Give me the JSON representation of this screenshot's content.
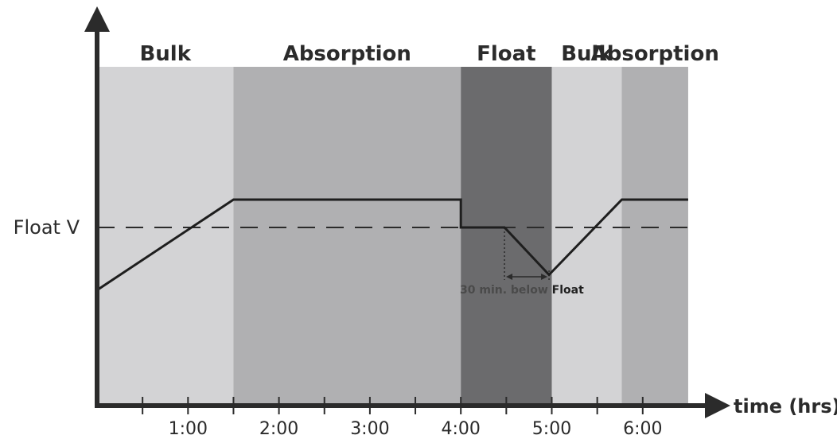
{
  "chart_data": {
    "type": "line",
    "x_unit_label": "time (hrs)",
    "y_reference_label": "Float V",
    "x_ticks": [
      "1:00",
      "2:00",
      "3:00",
      "4:00",
      "5:00",
      "6:00"
    ],
    "x_range_hours": [
      0,
      6.5
    ],
    "stages": [
      {
        "label": "Bulk",
        "start": 0,
        "end": 1.5,
        "color": "#d3d3d5"
      },
      {
        "label": "Absorption",
        "start": 1.5,
        "end": 4.0,
        "color": "#b0b0b2"
      },
      {
        "label": "Float",
        "start": 4.0,
        "end": 5.0,
        "color": "#6b6b6d"
      },
      {
        "label": "Bulk",
        "start": 5.0,
        "end": 5.77,
        "color": "#d3d3d5"
      },
      {
        "label": "Absorption",
        "start": 5.77,
        "end": 6.5,
        "color": "#b0b0b2"
      }
    ],
    "voltage_profile": [
      {
        "t": 0,
        "v": -0.9
      },
      {
        "t": 1.5,
        "v": 0.4
      },
      {
        "t": 4.0,
        "v": 0.4
      },
      {
        "t": 4.0,
        "v": 0
      },
      {
        "t": 4.48,
        "v": 0
      },
      {
        "t": 4.97,
        "v": -0.68
      },
      {
        "t": 5.77,
        "v": 0.4
      },
      {
        "t": 6.5,
        "v": 0.4
      }
    ],
    "annotation": {
      "text_prefix": "30 min. below ",
      "text_emphasis": "Float",
      "start": 4.48,
      "end": 4.97
    }
  }
}
